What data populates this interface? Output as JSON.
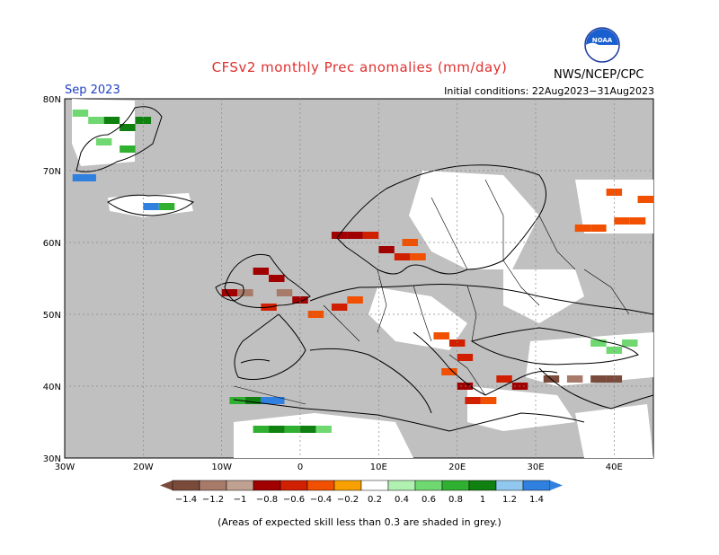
{
  "title": "CFSv2 monthly Prec anomalies (mm/day)",
  "month": "Sep 2023",
  "initial_conditions": "Initial conditions: 22Aug2023−31Aug2023",
  "agency": "NWS/NCEP/CPC",
  "logo": "NOAA",
  "footnote": "(Areas of expected skill less than 0.3 are shaded in grey.)",
  "colors": {
    "title": "#e03030",
    "month": "#2040c0",
    "skill_grey": "#c0c0c0",
    "map_background": "#ffffff"
  },
  "map": {
    "lon_range": [
      -30,
      45
    ],
    "lat_range": [
      30,
      80
    ],
    "lon_ticks": [
      "30W",
      "20W",
      "10W",
      "0",
      "10E",
      "20E",
      "30E",
      "40E"
    ],
    "lat_ticks": [
      "30N",
      "40N",
      "50N",
      "60N",
      "70N",
      "80N"
    ]
  },
  "colorbar": {
    "labels": [
      "−1.4",
      "−1.2",
      "−1",
      "−0.8",
      "−0.6",
      "−0.4",
      "−0.2",
      "0.2",
      "0.4",
      "0.6",
      "0.8",
      "1",
      "1.2",
      "1.4"
    ],
    "colors": [
      "#7a4a3a",
      "#a87a6a",
      "#c0a090",
      "#a00000",
      "#d02000",
      "#f05000",
      "#f8a000",
      "#ffffff",
      "#b0f0b0",
      "#70d870",
      "#30b030",
      "#108010",
      "#90c8f0",
      "#3080e0"
    ]
  },
  "anomaly_cells": [
    {
      "lon": -28,
      "lat": 78,
      "v": 0.5
    },
    {
      "lon": -26,
      "lat": 77,
      "v": 0.5
    },
    {
      "lon": -24,
      "lat": 77,
      "v": 0.8
    },
    {
      "lon": -22,
      "lat": 76,
      "v": 0.8
    },
    {
      "lon": -20,
      "lat": 77,
      "v": 0.8
    },
    {
      "lon": -22,
      "lat": 73,
      "v": 0.6
    },
    {
      "lon": -25,
      "lat": 74,
      "v": 0.5
    },
    {
      "lon": -28,
      "lat": 69,
      "v": 1.2
    },
    {
      "lon": -27,
      "lat": 69,
      "v": 1.4
    },
    {
      "lon": -19,
      "lat": 65,
      "v": 1.3
    },
    {
      "lon": -17,
      "lat": 65,
      "v": 0.7
    },
    {
      "lon": 5,
      "lat": 61,
      "v": -0.9
    },
    {
      "lon": 7,
      "lat": 61,
      "v": -0.8
    },
    {
      "lon": 9,
      "lat": 61,
      "v": -0.6
    },
    {
      "lon": 11,
      "lat": 59,
      "v": -0.9
    },
    {
      "lon": 13,
      "lat": 58,
      "v": -0.7
    },
    {
      "lon": 15,
      "lat": 58,
      "v": -0.5
    },
    {
      "lon": 14,
      "lat": 60,
      "v": -0.5
    },
    {
      "lon": -9,
      "lat": 53,
      "v": -0.9
    },
    {
      "lon": -7,
      "lat": 53,
      "v": -1.0
    },
    {
      "lon": -5,
      "lat": 56,
      "v": -0.9
    },
    {
      "lon": -3,
      "lat": 55,
      "v": -0.8
    },
    {
      "lon": -2,
      "lat": 53,
      "v": -1.0
    },
    {
      "lon": -4,
      "lat": 51,
      "v": -0.7
    },
    {
      "lon": 0,
      "lat": 52,
      "v": -0.9
    },
    {
      "lon": 2,
      "lat": 50,
      "v": -0.5
    },
    {
      "lon": 5,
      "lat": 51,
      "v": -0.6
    },
    {
      "lon": 7,
      "lat": 52,
      "v": -0.4
    },
    {
      "lon": 18,
      "lat": 47,
      "v": -0.5
    },
    {
      "lon": 20,
      "lat": 46,
      "v": -0.6
    },
    {
      "lon": 21,
      "lat": 44,
      "v": -0.6
    },
    {
      "lon": 19,
      "lat": 42,
      "v": -0.5
    },
    {
      "lon": 21,
      "lat": 40,
      "v": -0.8
    },
    {
      "lon": 22,
      "lat": 38,
      "v": -0.6
    },
    {
      "lon": 24,
      "lat": 38,
      "v": -0.5
    },
    {
      "lon": 26,
      "lat": 41,
      "v": -0.7
    },
    {
      "lon": 28,
      "lat": 40,
      "v": -0.8
    },
    {
      "lon": 32,
      "lat": 41,
      "v": -1.3
    },
    {
      "lon": 35,
      "lat": 41,
      "v": -1.0
    },
    {
      "lon": 38,
      "lat": 41,
      "v": -1.2
    },
    {
      "lon": 40,
      "lat": 41,
      "v": -1.3
    },
    {
      "lon": 36,
      "lat": 62,
      "v": -0.4
    },
    {
      "lon": 38,
      "lat": 62,
      "v": -0.4
    },
    {
      "lon": 41,
      "lat": 63,
      "v": -0.4
    },
    {
      "lon": 43,
      "lat": 63,
      "v": -0.4
    },
    {
      "lon": 40,
      "lat": 67,
      "v": -0.4
    },
    {
      "lon": 44,
      "lat": 66,
      "v": -0.4
    },
    {
      "lon": -8,
      "lat": 38,
      "v": 0.6
    },
    {
      "lon": -6,
      "lat": 38,
      "v": 0.8
    },
    {
      "lon": -4,
      "lat": 38,
      "v": 1.2
    },
    {
      "lon": -3,
      "lat": 38,
      "v": 1.3
    },
    {
      "lon": -5,
      "lat": 34,
      "v": 0.6
    },
    {
      "lon": -3,
      "lat": 34,
      "v": 0.8
    },
    {
      "lon": -1,
      "lat": 34,
      "v": 0.7
    },
    {
      "lon": 1,
      "lat": 34,
      "v": 0.8
    },
    {
      "lon": 3,
      "lat": 34,
      "v": 0.5
    },
    {
      "lon": 38,
      "lat": 46,
      "v": 0.5
    },
    {
      "lon": 40,
      "lat": 45,
      "v": 0.5
    },
    {
      "lon": 42,
      "lat": 46,
      "v": 0.4
    }
  ]
}
